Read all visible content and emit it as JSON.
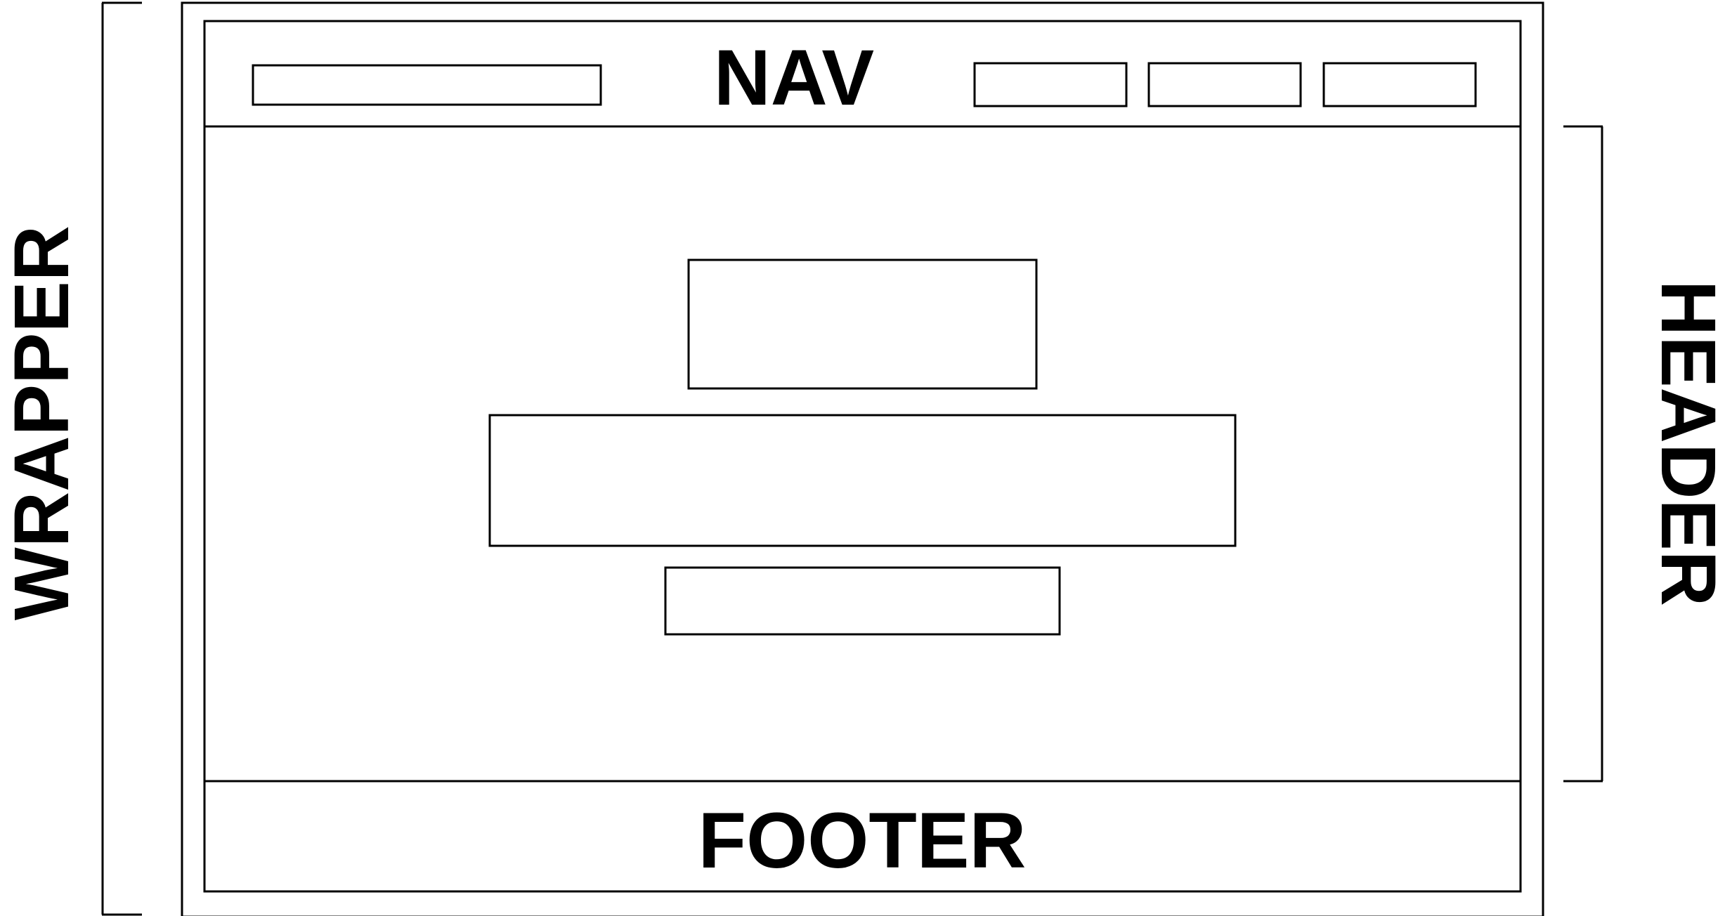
{
  "labels": {
    "nav": "NAV",
    "footer": "FOOTER",
    "wrapper": "WRAPPER",
    "header": "HEADER"
  },
  "colors": {
    "stroke": "#000000",
    "background": "#ffffff"
  }
}
